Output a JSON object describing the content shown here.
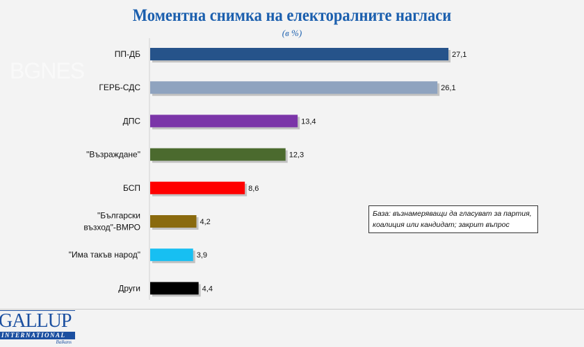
{
  "chart_data": {
    "type": "bar",
    "orientation": "horizontal",
    "title": "Моментна снимка на електоралните нагласи",
    "subtitle": "(в %)",
    "categories": [
      "ПП-ДБ",
      "ГЕРБ-СДС",
      "ДПС",
      "\"Възраждане\"",
      "БСП",
      "\"Български възход\"-ВМРО",
      "\"Има такъв народ\"",
      "Други"
    ],
    "category_lines": [
      [
        "ПП-ДБ"
      ],
      [
        "ГЕРБ-СДС"
      ],
      [
        "ДПС"
      ],
      [
        "\"Възраждане\""
      ],
      [
        "БСП"
      ],
      [
        "\"Български",
        "възход\"-ВМРО"
      ],
      [
        "\"Има такъв народ\""
      ],
      [
        "Други"
      ]
    ],
    "values": [
      27.1,
      26.1,
      13.4,
      12.3,
      8.6,
      4.2,
      3.9,
      4.4
    ],
    "value_labels": [
      "27,1",
      "26,1",
      "13,4",
      "12,3",
      "8,6",
      "4,2",
      "3,9",
      "4,4"
    ],
    "colors": [
      "#26538a",
      "#8fa3bf",
      "#7b35a8",
      "#4b6a2e",
      "#ff0000",
      "#8a6a0e",
      "#17bff2",
      "#000000"
    ],
    "xlim": [
      0,
      27.1
    ],
    "grid": false,
    "xlabel": "",
    "ylabel": ""
  },
  "note": "База: възнамеряващи да гласуват за партия, коалиция или кандидат; закрит въпрос",
  "watermark": "BGNES",
  "logo": {
    "line1": "GALLUP",
    "line2": "INTERNATIONAL",
    "line3": "Balkans"
  }
}
